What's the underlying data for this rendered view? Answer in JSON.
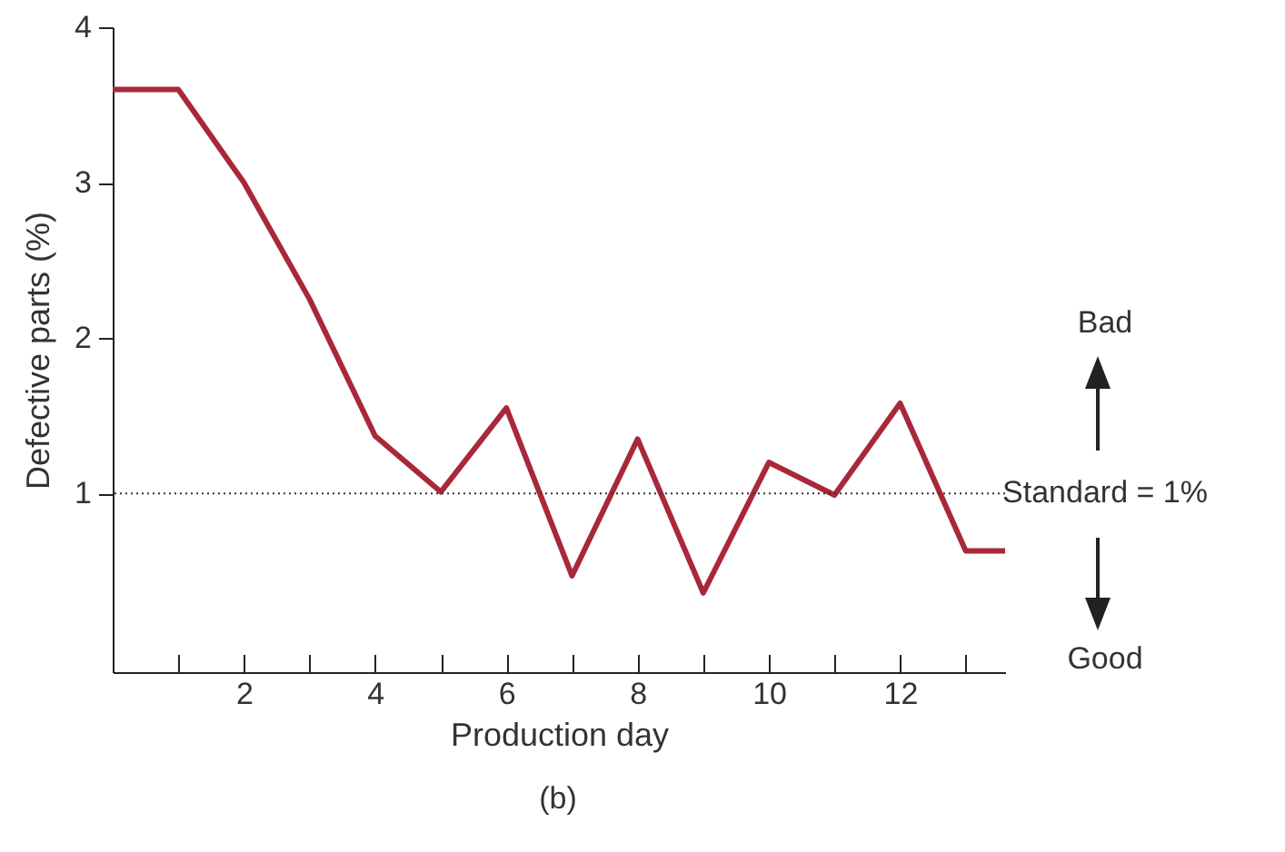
{
  "chart_data": {
    "type": "line",
    "xlabel": "Production day",
    "ylabel": "Defective parts (%)",
    "x": [
      0,
      1,
      2,
      3,
      4,
      5,
      6,
      7,
      8,
      9,
      10,
      11,
      12,
      13,
      13.6
    ],
    "series": [
      {
        "color": "#a8283a",
        "values": [
          3.6,
          3.6,
          3.0,
          2.25,
          1.37,
          1.01,
          1.55,
          0.47,
          1.35,
          0.36,
          1.2,
          0.99,
          1.58,
          0.63,
          0.63
        ]
      }
    ],
    "xlim": [
      0,
      13.6
    ],
    "ylim": [
      -0.15,
      4
    ],
    "xticks": [
      {
        "value": 1,
        "label": null
      },
      2,
      {
        "value": 3,
        "label": null
      },
      4,
      {
        "value": 5,
        "label": null
      },
      6,
      {
        "value": 7,
        "label": null
      },
      8,
      {
        "value": 9,
        "label": null
      },
      10,
      {
        "value": 11,
        "label": null
      },
      12,
      {
        "value": 13,
        "label": null
      }
    ],
    "yticks": [
      1,
      2,
      3,
      4
    ],
    "grid": false,
    "marker": "none",
    "line_style": "solid",
    "ref_lines": [
      {
        "axis": "y",
        "value": 1,
        "label": "Standard = 1%",
        "color": "#333333",
        "line_style": "dotted"
      }
    ],
    "annotations": [
      "Bad",
      "Good",
      "(b)"
    ]
  }
}
